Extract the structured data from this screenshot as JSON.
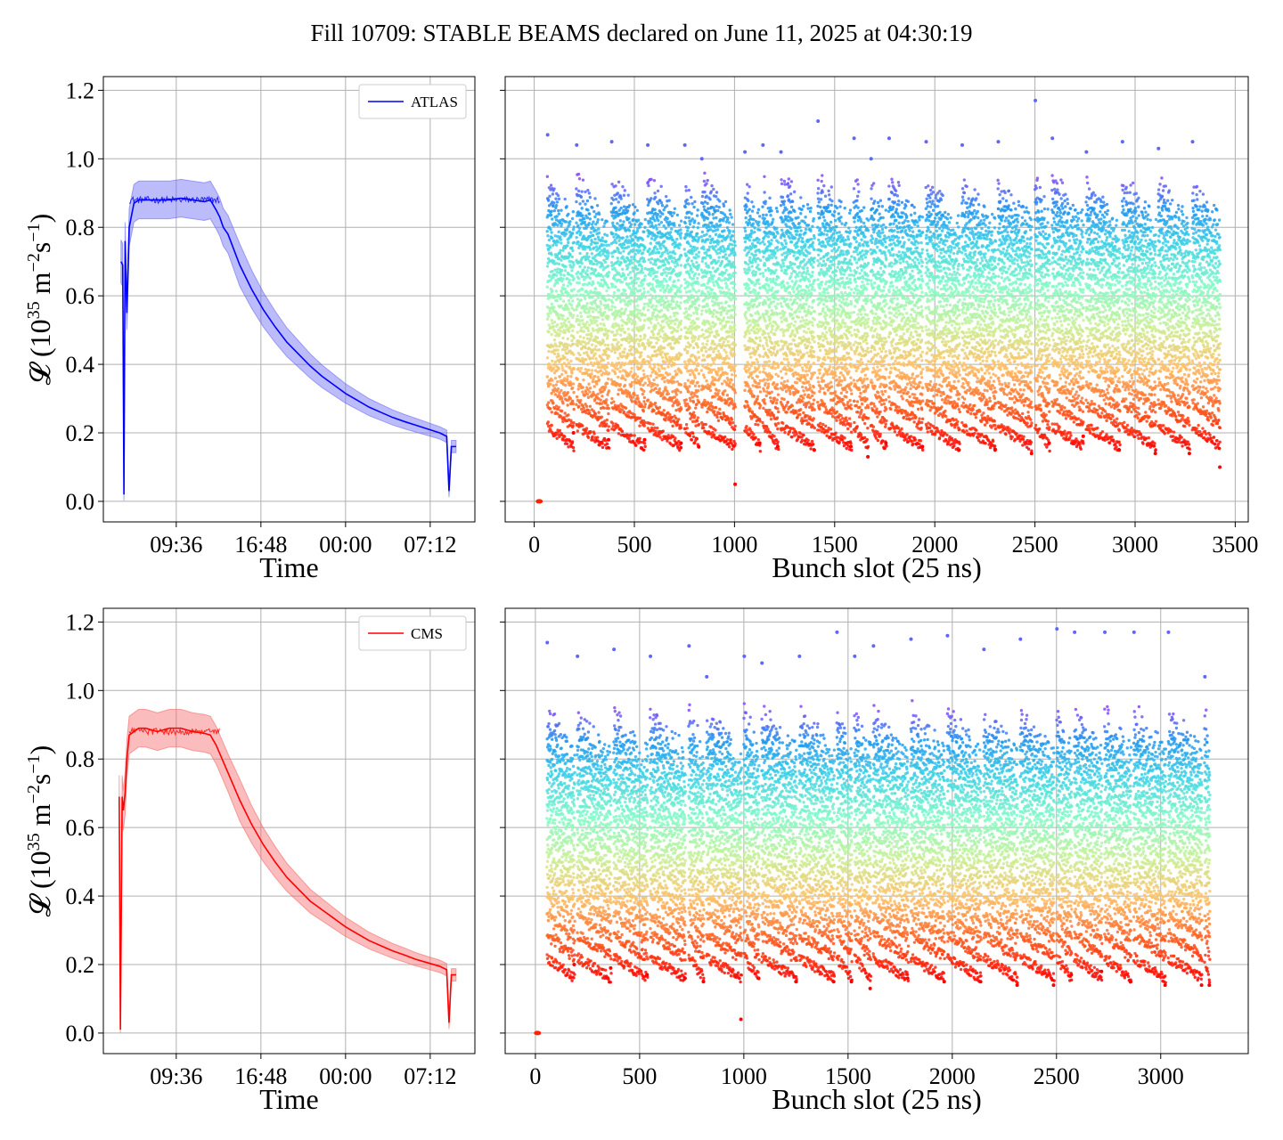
{
  "figure": {
    "title": "Fill 10709: STABLE BEAMS declared on June 11, 2025 at 04:30:19"
  },
  "chart_data": [
    {
      "panel": "top-left",
      "type": "line",
      "xlabel": "Time",
      "ylabel_parts": [
        "𝓛 (10",
        "35",
        " m",
        "−2",
        "s",
        "−1",
        ")"
      ],
      "x_tick_labels": [
        "09:36",
        "16:48",
        "00:00",
        "07:12"
      ],
      "y_ticks": [
        0.0,
        0.2,
        0.4,
        0.6,
        0.8,
        1.0,
        1.2
      ],
      "y_tick_labels": [
        "0.0",
        "0.2",
        "0.4",
        "0.6",
        "0.8",
        "1.0",
        "1.2"
      ],
      "ylim": [
        -0.06,
        1.24
      ],
      "xlim_hours": [
        3.4,
        35.0
      ],
      "grid": true,
      "legend_position": "top-right",
      "series": [
        {
          "name": "ATLAS",
          "color": "#0000ff",
          "band_color": "#6a6af5",
          "x_hours": [
            4.9,
            5.05,
            5.15,
            5.25,
            5.4,
            5.6,
            6.0,
            6.4,
            7.0,
            8.0,
            9.0,
            10.0,
            11.0,
            12.0,
            12.5,
            13.0,
            13.3,
            13.6,
            14.0,
            15.0,
            16.0,
            17.0,
            18.0,
            19.0,
            20.0,
            21.0,
            22.0,
            23.0,
            24.0,
            25.0,
            26.0,
            27.0,
            28.0,
            29.0,
            30.0,
            31.0,
            32.0,
            32.6,
            32.8,
            33.0,
            33.4
          ],
          "values": [
            0.7,
            0.69,
            0.02,
            0.76,
            0.55,
            0.8,
            0.87,
            0.88,
            0.88,
            0.88,
            0.88,
            0.885,
            0.88,
            0.875,
            0.88,
            0.85,
            0.83,
            0.8,
            0.78,
            0.69,
            0.62,
            0.56,
            0.51,
            0.465,
            0.43,
            0.395,
            0.365,
            0.34,
            0.315,
            0.295,
            0.275,
            0.26,
            0.245,
            0.233,
            0.222,
            0.211,
            0.2,
            0.19,
            0.03,
            0.16,
            0.16
          ]
        }
      ]
    },
    {
      "panel": "top-right",
      "type": "scatter",
      "xlabel": "Bunch slot (25 ns)",
      "x_ticks": [
        0,
        500,
        1000,
        1500,
        2000,
        2500,
        3000,
        3500
      ],
      "x_tick_labels": [
        "0",
        "500",
        "1000",
        "1500",
        "2000",
        "2500",
        "3000",
        "3500"
      ],
      "xlim": [
        -145,
        3565
      ],
      "ylim": [
        -0.06,
        1.24
      ],
      "grid": true,
      "colormap": "rainbow",
      "train_starts": [
        65,
        210,
        385,
        565,
        750,
        835,
        1050,
        1140,
        1230,
        1415,
        1595,
        1680,
        1770,
        1955,
        2135,
        2315,
        2500,
        2585,
        2755,
        2935,
        3115,
        3285
      ],
      "train_end": 3425,
      "train_length": 110,
      "train_peak_values": [
        1.07,
        1.04,
        1.05,
        1.04,
        1.04,
        1.0,
        1.02,
        1.04,
        1.02,
        1.11,
        1.06,
        1.0,
        1.06,
        1.05,
        1.04,
        1.05,
        1.17,
        1.06,
        1.02,
        1.05,
        1.03,
        1.05
      ],
      "train_min_values": [
        0.2,
        0.18,
        0.18,
        0.17,
        0.16,
        0.05,
        0.17,
        0.16,
        0.15,
        0.16,
        0.13,
        0.17,
        0.16,
        0.15,
        0.15,
        0.14,
        0.17,
        0.19,
        0.15,
        0.14,
        0.14,
        0.1
      ],
      "empty_bunch": {
        "x": 25,
        "y": 0.0
      }
    },
    {
      "panel": "bottom-left",
      "type": "line",
      "xlabel": "Time",
      "ylabel_parts": [
        "𝓛 (10",
        "35",
        " m",
        "−2",
        "s",
        "−1",
        ")"
      ],
      "x_tick_labels": [
        "09:36",
        "16:48",
        "00:00",
        "07:12"
      ],
      "y_ticks": [
        0.0,
        0.2,
        0.4,
        0.6,
        0.8,
        1.0,
        1.2
      ],
      "y_tick_labels": [
        "0.0",
        "0.2",
        "0.4",
        "0.6",
        "0.8",
        "1.0",
        "1.2"
      ],
      "ylim": [
        -0.06,
        1.24
      ],
      "xlim_hours": [
        3.4,
        35.0
      ],
      "grid": true,
      "legend_position": "top-right",
      "series": [
        {
          "name": "CMS",
          "color": "#ff0000",
          "band_color": "#f56a6a",
          "x_hours": [
            4.75,
            4.85,
            5.0,
            5.1,
            5.25,
            5.4,
            5.6,
            6.0,
            6.4,
            7.0,
            8.0,
            9.0,
            10.0,
            11.0,
            12.0,
            12.5,
            13.0,
            13.5,
            14.0,
            15.0,
            16.0,
            17.0,
            18.0,
            19.0,
            20.0,
            21.0,
            22.0,
            23.0,
            24.0,
            25.0,
            26.0,
            27.0,
            28.0,
            29.0,
            30.0,
            31.0,
            32.0,
            32.6,
            32.8,
            33.0,
            33.4
          ],
          "values": [
            0.69,
            0.01,
            0.69,
            0.65,
            0.7,
            0.8,
            0.87,
            0.88,
            0.89,
            0.89,
            0.88,
            0.89,
            0.89,
            0.88,
            0.875,
            0.87,
            0.84,
            0.8,
            0.76,
            0.68,
            0.61,
            0.55,
            0.5,
            0.455,
            0.42,
            0.385,
            0.36,
            0.335,
            0.31,
            0.29,
            0.27,
            0.255,
            0.24,
            0.228,
            0.215,
            0.205,
            0.195,
            0.185,
            0.03,
            0.17,
            0.17
          ]
        }
      ]
    },
    {
      "panel": "bottom-right",
      "type": "scatter",
      "xlabel": "Bunch slot (25 ns)",
      "x_ticks": [
        0,
        500,
        1000,
        1500,
        2000,
        2500,
        3000
      ],
      "x_tick_labels": [
        "0",
        "500",
        "1000",
        "1500",
        "2000",
        "2500",
        "3000"
      ],
      "xlim": [
        -145,
        3420
      ],
      "ylim": [
        -0.06,
        1.24
      ],
      "grid": true,
      "colormap": "rainbow",
      "train_starts": [
        55,
        200,
        375,
        550,
        735,
        820,
        1000,
        1085,
        1265,
        1445,
        1530,
        1620,
        1800,
        1975,
        2150,
        2325,
        2500,
        2585,
        2730,
        2870,
        3035,
        3210
      ],
      "train_end": 3235,
      "train_length": 110,
      "train_peak_values": [
        1.14,
        1.1,
        1.12,
        1.1,
        1.13,
        1.04,
        1.1,
        1.08,
        1.1,
        1.17,
        1.1,
        1.13,
        1.15,
        1.16,
        1.12,
        1.15,
        1.18,
        1.17,
        1.17,
        1.17,
        1.17,
        1.04
      ],
      "train_min_values": [
        0.2,
        0.19,
        0.17,
        0.16,
        0.15,
        0.04,
        0.16,
        0.15,
        0.15,
        0.15,
        0.13,
        0.16,
        0.15,
        0.15,
        0.14,
        0.14,
        0.17,
        0.18,
        0.15,
        0.14,
        0.14,
        0.14
      ],
      "empty_bunch": {
        "x": 10,
        "y": 0.0
      }
    }
  ]
}
